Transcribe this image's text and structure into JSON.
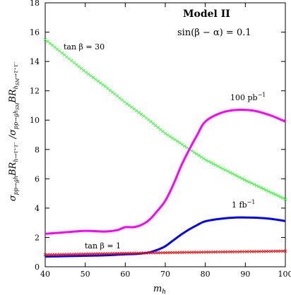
{
  "chart_data": {
    "type": "line",
    "title": "Model II",
    "subtitle": "sin(β − α) = 0.1",
    "xlabel": "m_h",
    "ylabel": "σ_{pp→gh}BR_{h→τ+τ−} / σ_{pp→gh_SM}BR_{h_SM→τ+τ−}",
    "xlim": [
      40,
      100
    ],
    "ylim": [
      0,
      18
    ],
    "xticks": [
      40,
      50,
      60,
      70,
      80,
      90,
      100
    ],
    "yticks": [
      0,
      2,
      4,
      6,
      8,
      10,
      12,
      14,
      16,
      18
    ],
    "grid": false,
    "series": [
      {
        "name": "tan β = 30",
        "color": "#33ff33",
        "style": "crosses",
        "x": [
          40,
          45,
          50,
          55,
          60,
          65,
          70,
          75,
          80,
          85,
          90,
          95,
          100
        ],
        "y": [
          15.5,
          14.4,
          13.3,
          12.3,
          11.2,
          10.2,
          9.1,
          8.2,
          7.3,
          6.6,
          5.9,
          5.25,
          4.6
        ]
      },
      {
        "name": "100 pb⁻¹",
        "color": "#ff00ff",
        "style": "thick",
        "x": [
          40,
          45,
          50,
          55,
          58,
          60,
          62,
          64,
          66,
          68,
          70,
          72,
          74,
          76,
          78,
          80,
          84,
          88,
          92,
          96,
          100
        ],
        "y": [
          2.25,
          2.35,
          2.45,
          2.4,
          2.5,
          2.7,
          2.7,
          2.85,
          3.2,
          3.8,
          4.5,
          5.6,
          6.9,
          8.0,
          9.0,
          9.9,
          10.5,
          10.7,
          10.65,
          10.35,
          9.9
        ]
      },
      {
        "name": "1 fb⁻¹",
        "color": "#0000ff",
        "style": "thick",
        "x": [
          40,
          45,
          50,
          55,
          60,
          63,
          66,
          68,
          70,
          72,
          74,
          76,
          78,
          80,
          84,
          88,
          92,
          96,
          100
        ],
        "y": [
          0.7,
          0.72,
          0.75,
          0.78,
          0.85,
          0.88,
          0.98,
          1.15,
          1.4,
          1.8,
          2.2,
          2.55,
          2.85,
          3.1,
          3.28,
          3.36,
          3.35,
          3.28,
          3.12
        ]
      },
      {
        "name": "tan β = 1",
        "color": "#ff0000",
        "style": "crosses",
        "x": [
          40,
          50,
          60,
          70,
          80,
          90,
          100
        ],
        "y": [
          0.82,
          0.87,
          0.92,
          0.96,
          1.0,
          1.03,
          1.07
        ]
      }
    ]
  },
  "labels": {
    "xaxis": "m",
    "xaxis_sub": "h",
    "title": "Model II",
    "subtitle": "sin(β − α) = 0.1",
    "tanb30": "tan β = 30",
    "tanb1": "tan β = 1",
    "lumi100": "100 pb",
    "lumi1": "1 fb",
    "lumi_exp": "−1"
  }
}
